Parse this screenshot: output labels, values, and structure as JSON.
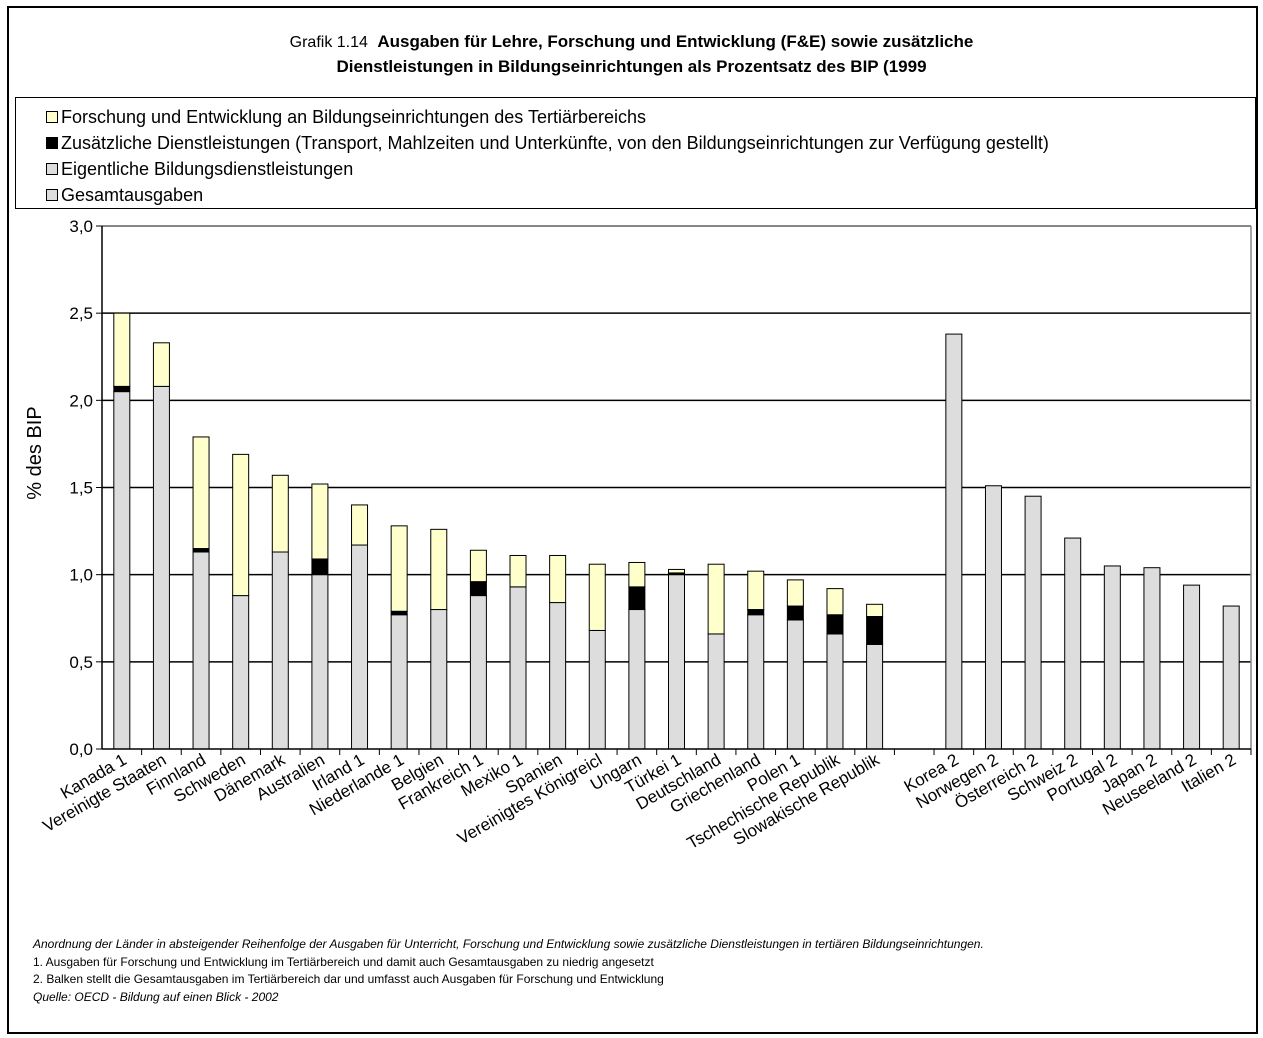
{
  "title": {
    "prefix": "Grafik 1.14",
    "line1": "Ausgaben für Lehre, Forschung und Entwicklung (F&E) sowie zusätzliche",
    "line2": "Dienstleistungen in Bildungseinrichtungen als Prozentsatz des BIP (1999"
  },
  "legend": [
    {
      "label": "Forschung und Entwicklung an Bildungseinrichtungen des Tertiärbereichs",
      "color": "#ffffcc"
    },
    {
      "label": "Zusätzliche Dienstleistungen (Transport, Mahlzeiten und Unterkünfte, von den Bildungseinrichtungen zur Verfügung gestellt)",
      "color": "#000000"
    },
    {
      "label": "Eigentliche Bildungsdienstleistungen",
      "color": "#dddddd"
    },
    {
      "label": "Gesamtausgaben",
      "color": "#dddddd"
    }
  ],
  "chart_data": {
    "type": "bar",
    "stacked": true,
    "ylabel": "% des BIP",
    "ylim": [
      0,
      3
    ],
    "yticks": [
      "0,0",
      "0,5",
      "1,0",
      "1,5",
      "2,0",
      "2,5",
      "3,0"
    ],
    "grid": true,
    "legend_position": "top",
    "categories": [
      "Kanada 1",
      "Vereinigte Staaten",
      "Finnland",
      "Schweden",
      "Dänemark",
      "Australien",
      "Irland 1",
      "Niederlande 1",
      "Belgien",
      "Frankreich 1",
      "Mexiko 1",
      "Spanien",
      "Vereinigtes Königreicl",
      "Ungarn",
      "Türkei 1",
      "Deutschland",
      "Griechenland",
      "Polen 1",
      "Tschechische Republik",
      "Slowakische Republik",
      "",
      "Korea 2",
      "Norwegen 2",
      "Österreich 2",
      "Schweiz 2",
      "Portugal 2",
      "Japan 2",
      "Neuseeland 2",
      "Italien 2"
    ],
    "series": [
      {
        "name": "Eigentliche Bildungsdienstleistungen",
        "color": "#dddddd",
        "values": [
          2.05,
          2.08,
          1.13,
          0.88,
          1.13,
          1.0,
          1.17,
          0.77,
          0.8,
          0.88,
          0.93,
          0.84,
          0.68,
          0.8,
          1.0,
          0.66,
          0.77,
          0.74,
          0.66,
          0.6,
          null,
          null,
          null,
          null,
          null,
          null,
          null,
          null,
          null
        ]
      },
      {
        "name": "Zusätzliche Dienstleistungen (Transport, Mahlzeiten und Unterkünfte, von den Bildungseinrichtungen zur Verfügung gestellt)",
        "color": "#000000",
        "values": [
          0.03,
          0.0,
          0.02,
          0.0,
          0.0,
          0.09,
          0.0,
          0.02,
          0.0,
          0.08,
          0.0,
          0.0,
          0.0,
          0.13,
          0.01,
          0.0,
          0.03,
          0.08,
          0.11,
          0.16,
          null,
          null,
          null,
          null,
          null,
          null,
          null,
          null,
          null
        ]
      },
      {
        "name": "Forschung und Entwicklung an Bildungseinrichtungen des Tertiärbereichs",
        "color": "#ffffcc",
        "values": [
          0.42,
          0.25,
          0.64,
          0.81,
          0.44,
          0.43,
          0.23,
          0.49,
          0.46,
          0.18,
          0.18,
          0.27,
          0.38,
          0.14,
          0.02,
          0.4,
          0.22,
          0.15,
          0.15,
          0.07,
          null,
          null,
          null,
          null,
          null,
          null,
          null,
          null,
          null
        ]
      },
      {
        "name": "Gesamtausgaben",
        "color": "#dddddd",
        "values": [
          null,
          null,
          null,
          null,
          null,
          null,
          null,
          null,
          null,
          null,
          null,
          null,
          null,
          null,
          null,
          null,
          null,
          null,
          null,
          null,
          null,
          2.38,
          1.51,
          1.45,
          1.21,
          1.05,
          1.04,
          0.94,
          0.82
        ]
      }
    ]
  },
  "notes": {
    "order_note": "Anordnung der Länder in absteigender Reihenfolge der Ausgaben für Unterricht, Forschung und Entwicklung sowie zusätzliche Dienstleistungen in tertiären Bildungseinrichtungen.",
    "note1": "1. Ausgaben für Forschung und Entwicklung im Tertiärbereich und damit auch Gesamtausgaben zu niedrig angesetzt",
    "note2": "2. Balken stellt die Gesamtausgaben im Tertiärbereich dar und umfasst auch Ausgaben für Forschung und Entwicklung",
    "source": "Quelle: OECD - Bildung auf einen Blick - 2002"
  }
}
